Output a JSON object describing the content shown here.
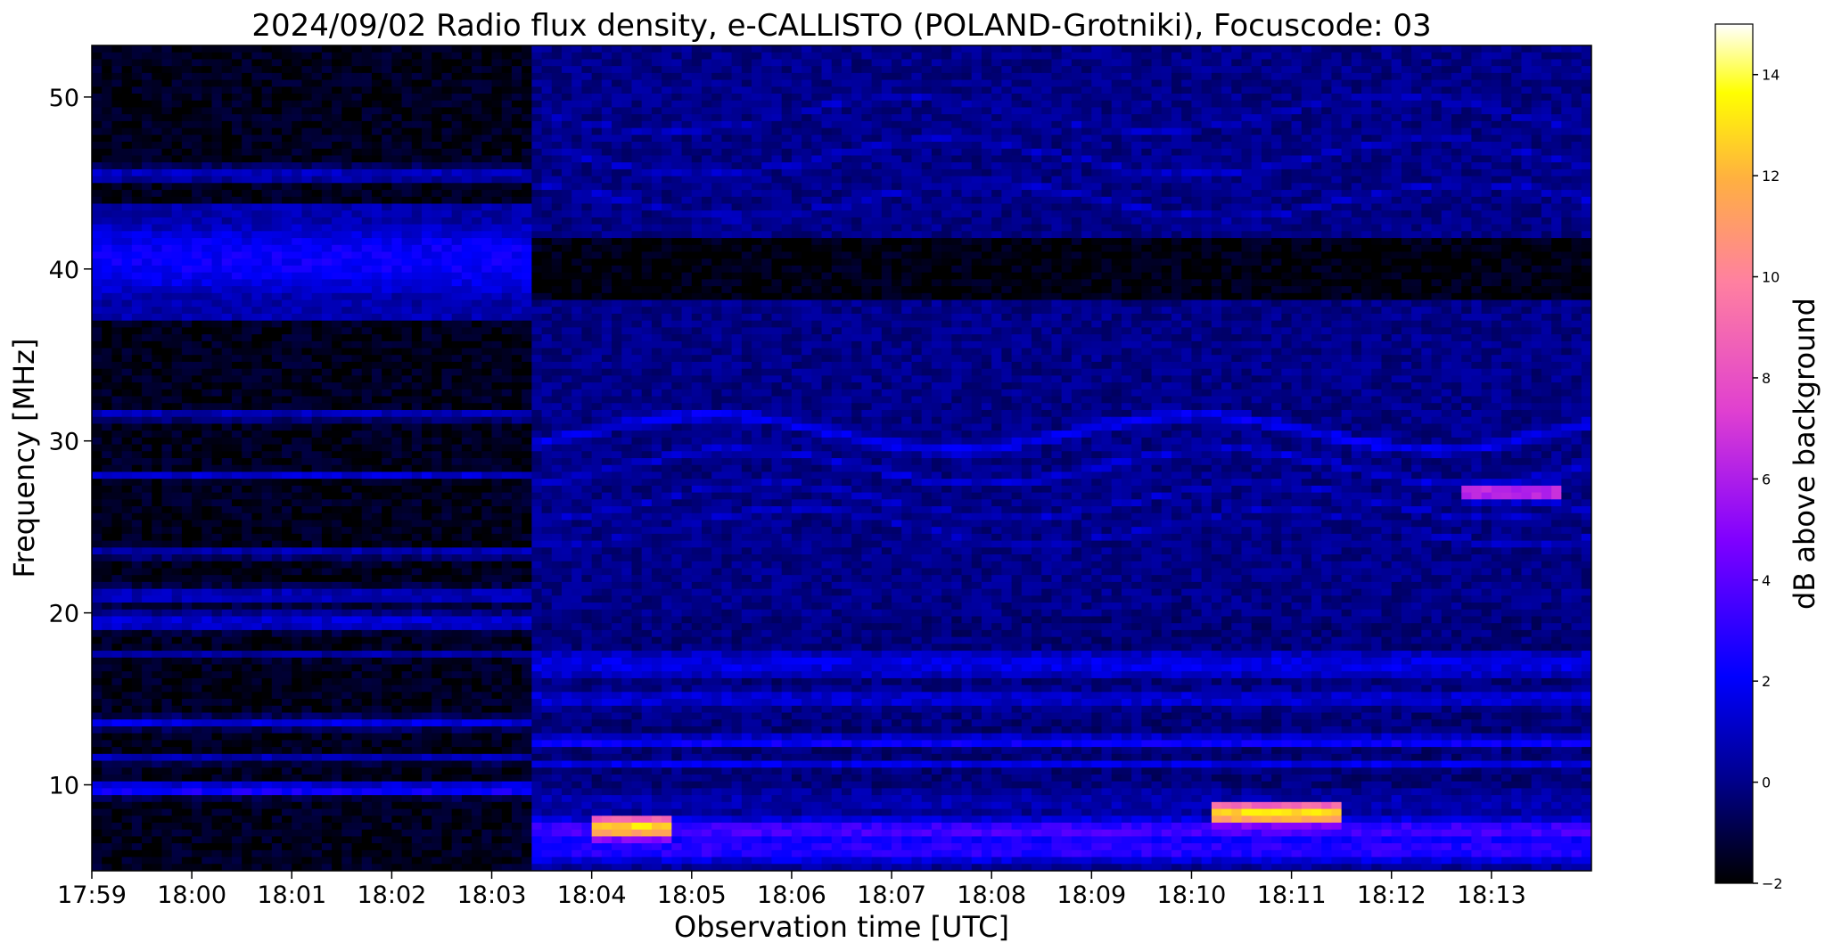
{
  "chart_data": {
    "type": "heatmap",
    "title": "2024/09/02  Radio flux density, e-CALLISTO (POLAND-Grotniki), Focuscode: 03",
    "xlabel": "Observation time [UTC]",
    "ylabel": "Frequency [MHz]",
    "x_tick_labels": [
      "17:59",
      "18:00",
      "18:01",
      "18:02",
      "18:03",
      "18:04",
      "18:05",
      "18:06",
      "18:07",
      "18:08",
      "18:09",
      "18:10",
      "18:11",
      "18:12",
      "18:13"
    ],
    "x_range_minutes": [
      0,
      15
    ],
    "y_ticks": [
      10,
      20,
      30,
      40,
      50
    ],
    "ylim": [
      5,
      53
    ],
    "data_discontinuity_time": "18:03:24",
    "colorbar": {
      "label": "dB above background",
      "range": [
        -2,
        15
      ],
      "ticks": [
        -2,
        0,
        2,
        4,
        6,
        8,
        10,
        12,
        14
      ],
      "colormap": "gnuplot2",
      "stops": [
        "#000000",
        "#0000ff",
        "#8000ff",
        "#ff60a0",
        "#ffff00",
        "#ffffff"
      ]
    },
    "bands_segment1": [
      {
        "f": 40.5,
        "width": 3.2,
        "db": 2.2
      },
      {
        "f": 45.5,
        "width": 0.7,
        "db": 1.0
      },
      {
        "f": 31.5,
        "width": 0.5,
        "db": 0.9
      },
      {
        "f": 28.0,
        "width": 0.4,
        "db": 1.2
      },
      {
        "f": 23.5,
        "width": 0.5,
        "db": 0.8
      },
      {
        "f": 21.0,
        "width": 0.8,
        "db": 0.9
      },
      {
        "f": 19.5,
        "width": 0.8,
        "db": 1.4
      },
      {
        "f": 17.5,
        "width": 0.4,
        "db": 0.6
      },
      {
        "f": 13.6,
        "width": 0.5,
        "db": 1.5
      },
      {
        "f": 11.5,
        "width": 0.4,
        "db": 0.9
      },
      {
        "f": 9.7,
        "width": 0.5,
        "db": 2.5
      }
    ],
    "bands_segment2": [
      {
        "f": 49.0,
        "width": 0.5,
        "db": 0.9
      },
      {
        "f": 46.5,
        "width": 0.5,
        "db": 1.0
      },
      {
        "f": 44.0,
        "width": 0.5,
        "db": 1.0
      },
      {
        "f": 30.5,
        "width": 0.6,
        "db": 1.8
      },
      {
        "f": 28.5,
        "width": 0.5,
        "db": 1.3
      },
      {
        "f": 26.5,
        "width": 0.5,
        "db": 1.0
      },
      {
        "f": 25.0,
        "width": 0.5,
        "db": 0.9
      },
      {
        "f": 17.0,
        "width": 1.4,
        "db": 1.6
      },
      {
        "f": 15.0,
        "width": 1.0,
        "db": 1.3
      },
      {
        "f": 12.5,
        "width": 0.5,
        "db": 2.2
      },
      {
        "f": 11.2,
        "width": 0.5,
        "db": 1.6
      },
      {
        "f": 9.0,
        "width": 0.5,
        "db": 1.2
      },
      {
        "f": 7.3,
        "width": 0.9,
        "db": 3.5
      },
      {
        "f": 6.2,
        "width": 0.9,
        "db": 3.0
      }
    ],
    "bursts": [
      {
        "t_start": "18:04:00",
        "t_end": "18:04:45",
        "f": 7.5,
        "db": 13
      },
      {
        "t_start": "18:10:15",
        "t_end": "18:11:30",
        "f": 8.3,
        "db": 13
      },
      {
        "t_start": "18:12:45",
        "t_end": "18:13:40",
        "f": 27.0,
        "db": 7
      }
    ]
  }
}
